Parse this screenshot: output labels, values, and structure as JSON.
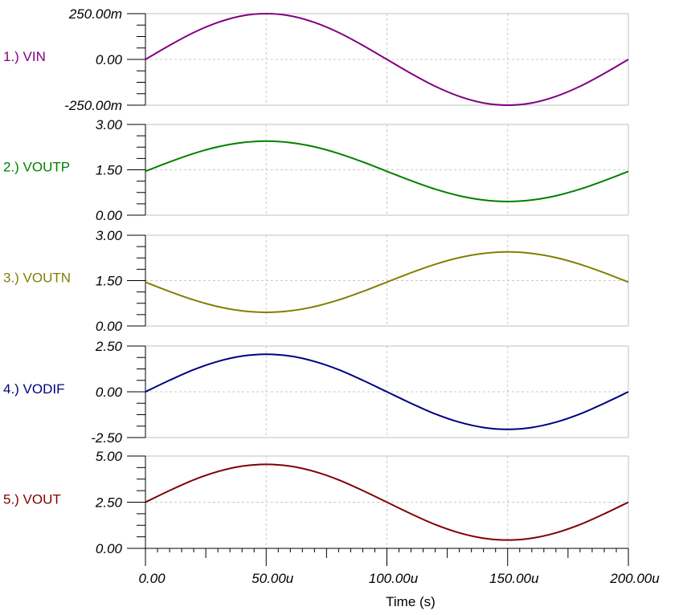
{
  "chart_data": {
    "type": "line",
    "xlabel": "Time (s)",
    "xlim": [
      0,
      0.0002
    ],
    "x_ticks": [
      0,
      5e-05,
      0.0001,
      0.00015,
      0.0002
    ],
    "x_tick_labels": [
      "0.00",
      "50.00u",
      "100.00u",
      "150.00u",
      "200.00u"
    ],
    "x": [
      0,
      1e-05,
      2e-05,
      3e-05,
      4e-05,
      5e-05,
      6e-05,
      7e-05,
      8e-05,
      9e-05,
      0.0001,
      0.00011,
      0.00012,
      0.00013,
      0.00014,
      0.00015,
      0.00016,
      0.00017,
      0.00018,
      0.00019,
      0.0002
    ],
    "grid": true,
    "panels": [
      {
        "label": "1.) VIN",
        "color": "#800080",
        "ylim": [
          -0.25,
          0.25
        ],
        "y_ticks": [
          -0.25,
          0,
          0.25
        ],
        "y_tick_labels": [
          "-250.00m",
          "0.00",
          "250.00m"
        ],
        "values": [
          0,
          0.077,
          0.147,
          0.202,
          0.238,
          0.25,
          0.238,
          0.202,
          0.147,
          0.077,
          0,
          -0.077,
          -0.147,
          -0.202,
          -0.238,
          -0.25,
          -0.238,
          -0.202,
          -0.147,
          -0.077,
          0
        ]
      },
      {
        "label": "2.) VOUTP",
        "color": "#008000",
        "ylim": [
          0,
          3
        ],
        "y_ticks": [
          0,
          1.5,
          3
        ],
        "y_tick_labels": [
          "0.00",
          "1.50",
          "3.00"
        ],
        "values": [
          1.45,
          1.76,
          2.04,
          2.26,
          2.4,
          2.45,
          2.4,
          2.26,
          2.04,
          1.76,
          1.45,
          1.14,
          0.86,
          0.64,
          0.5,
          0.45,
          0.5,
          0.64,
          0.86,
          1.14,
          1.45
        ]
      },
      {
        "label": "3.) VOUTN",
        "color": "#808000",
        "ylim": [
          0,
          3
        ],
        "y_ticks": [
          0,
          1.5,
          3
        ],
        "y_tick_labels": [
          "0.00",
          "1.50",
          "3.00"
        ],
        "values": [
          1.45,
          1.14,
          0.86,
          0.64,
          0.5,
          0.45,
          0.5,
          0.64,
          0.86,
          1.14,
          1.45,
          1.76,
          2.04,
          2.26,
          2.4,
          2.45,
          2.4,
          2.26,
          2.04,
          1.76,
          1.45
        ]
      },
      {
        "label": "4.) VODIF",
        "color": "#000080",
        "ylim": [
          -2.5,
          2.5
        ],
        "y_ticks": [
          -2.5,
          0,
          2.5
        ],
        "y_tick_labels": [
          "-2.50",
          "0.00",
          "2.50"
        ],
        "values": [
          0,
          0.63,
          1.21,
          1.66,
          1.95,
          2.05,
          1.95,
          1.66,
          1.21,
          0.63,
          0,
          -0.63,
          -1.21,
          -1.66,
          -1.95,
          -2.05,
          -1.95,
          -1.66,
          -1.21,
          -0.63,
          0
        ]
      },
      {
        "label": "5.) VOUT",
        "color": "#800000",
        "ylim": [
          0,
          5
        ],
        "y_ticks": [
          0,
          2.5,
          5
        ],
        "y_tick_labels": [
          "0.00",
          "2.50",
          "5.00"
        ],
        "values": [
          2.5,
          3.13,
          3.71,
          4.16,
          4.45,
          4.55,
          4.45,
          4.16,
          3.71,
          3.13,
          2.5,
          1.87,
          1.29,
          0.84,
          0.55,
          0.45,
          0.55,
          0.84,
          1.29,
          1.87,
          2.5
        ]
      }
    ]
  }
}
